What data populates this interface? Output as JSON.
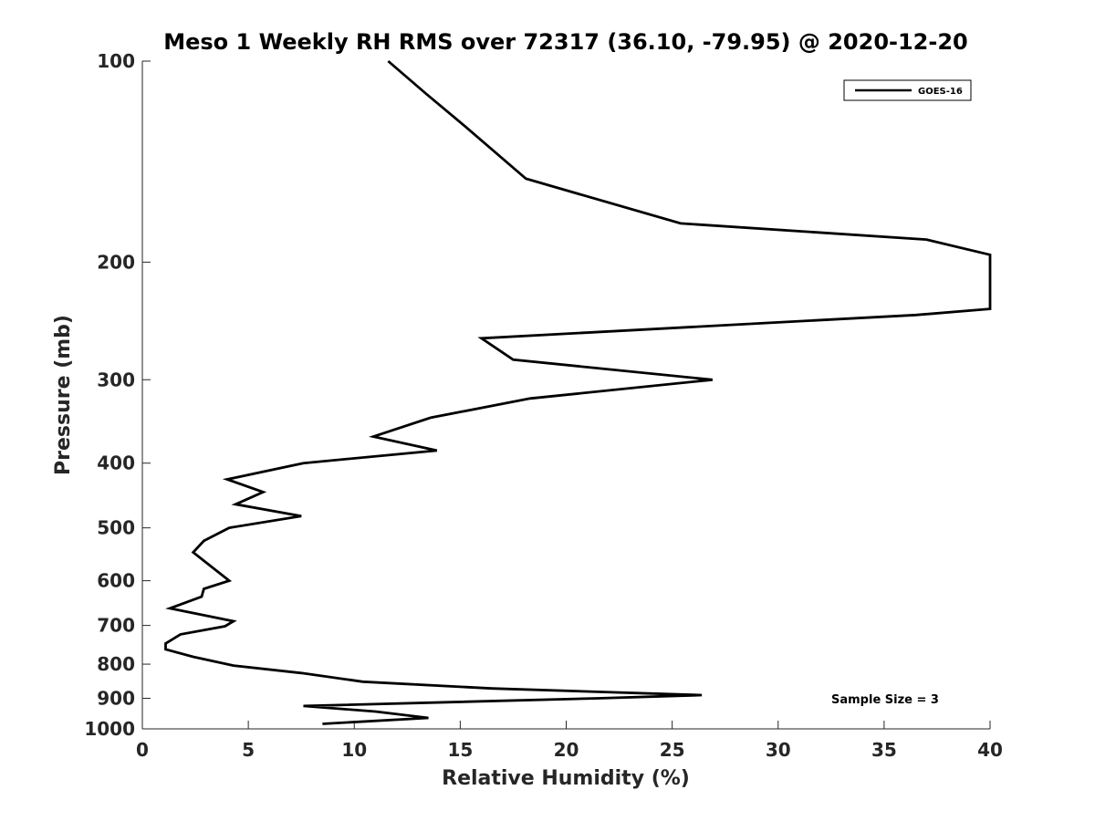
{
  "chart_data": {
    "type": "line",
    "title": "Meso 1 Weekly RH RMS over 72317 (36.10, -79.95) @ 2020-12-20",
    "xlabel": "Relative Humidity (%)",
    "ylabel": "Pressure (mb)",
    "xlim": [
      0,
      40
    ],
    "ylim": [
      100,
      1000
    ],
    "y_scale": "log",
    "y_reversed": true,
    "x_ticks": [
      0,
      5,
      10,
      15,
      20,
      25,
      30,
      35,
      40
    ],
    "y_ticks": [
      100,
      200,
      300,
      400,
      500,
      600,
      700,
      800,
      900,
      1000
    ],
    "grid": false,
    "legend_position": "top-right",
    "annotation": "Sample Size = 3",
    "series": [
      {
        "name": "GOES-16",
        "color": "#000000",
        "points": [
          [
            11.6,
            100
          ],
          [
            13.4,
            112
          ],
          [
            15.2,
            125
          ],
          [
            18.1,
            150
          ],
          [
            25.4,
            175
          ],
          [
            37.0,
            185
          ],
          [
            40.0,
            195
          ],
          [
            40.0,
            235
          ],
          [
            36.5,
            240
          ],
          [
            16.0,
            260
          ],
          [
            17.5,
            280
          ],
          [
            26.9,
            300
          ],
          [
            18.3,
            320
          ],
          [
            13.6,
            342
          ],
          [
            10.9,
            365
          ],
          [
            13.9,
            383
          ],
          [
            7.6,
            400
          ],
          [
            4.0,
            423
          ],
          [
            5.7,
            442
          ],
          [
            4.4,
            461
          ],
          [
            7.5,
            480
          ],
          [
            4.1,
            500
          ],
          [
            2.9,
            523
          ],
          [
            2.4,
            544
          ],
          [
            4.1,
            600
          ],
          [
            2.9,
            617
          ],
          [
            2.8,
            634
          ],
          [
            1.3,
            660
          ],
          [
            4.3,
            690
          ],
          [
            3.9,
            702
          ],
          [
            1.8,
            722
          ],
          [
            1.1,
            745
          ],
          [
            1.1,
            760
          ],
          [
            2.4,
            780
          ],
          [
            4.3,
            804
          ],
          [
            7.5,
            825
          ],
          [
            10.4,
            850
          ],
          [
            16.5,
            870
          ],
          [
            26.4,
            890
          ],
          [
            21.5,
            900
          ],
          [
            7.6,
            924
          ],
          [
            11.0,
            942
          ],
          [
            13.5,
            963
          ],
          [
            8.5,
            983
          ]
        ]
      }
    ]
  }
}
